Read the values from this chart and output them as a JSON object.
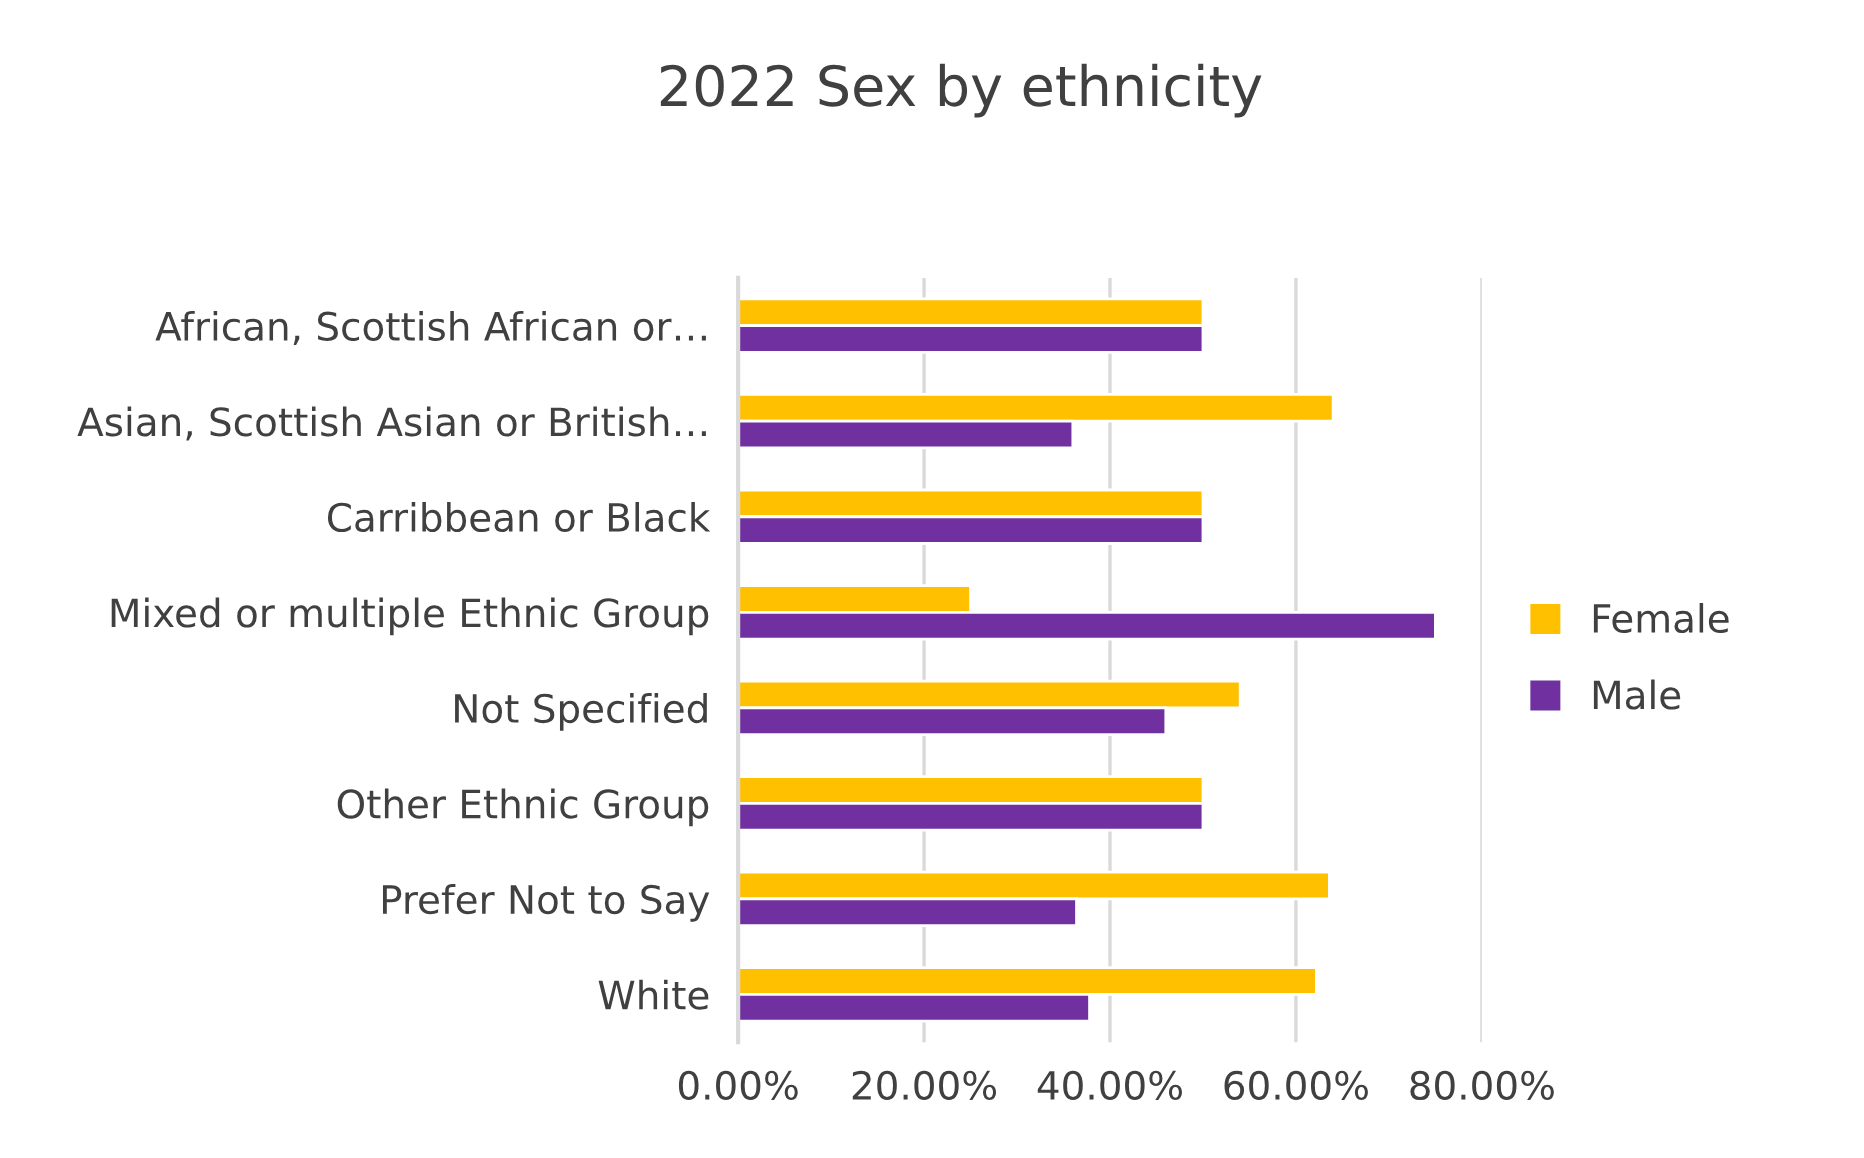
{
  "chart_data": {
    "type": "bar",
    "orientation": "horizontal",
    "title": "2022 Sex by ethnicity",
    "categories": [
      "African, Scottish African or…",
      "Asian, Scottish Asian or British…",
      "Carribbean or Black",
      "Mixed or multiple Ethnic Group",
      "Not Specified",
      "Other Ethnic Group",
      "Prefer Not to Say",
      "White"
    ],
    "series": [
      {
        "name": "Female",
        "color": "#ffc000",
        "values": [
          50,
          64,
          50,
          25,
          54,
          50,
          63.6,
          62.2
        ]
      },
      {
        "name": "Male",
        "color": "#7030a0",
        "values": [
          50,
          36,
          50,
          75,
          46,
          50,
          36.4,
          37.8
        ]
      }
    ],
    "xlim": [
      0,
      80
    ],
    "xticks": [
      {
        "value": 0,
        "label": "0.00%"
      },
      {
        "value": 20,
        "label": "20.00%"
      },
      {
        "value": 40,
        "label": "40.00%"
      },
      {
        "value": 60,
        "label": "60.00%"
      },
      {
        "value": 80,
        "label": "80.00%"
      }
    ],
    "grid": "x",
    "legend": "right"
  }
}
